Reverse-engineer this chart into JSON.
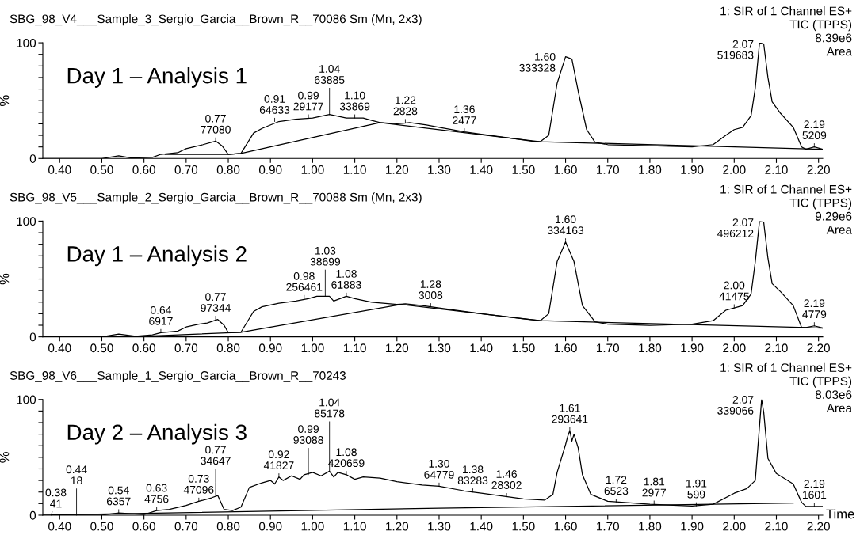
{
  "chart_data": [
    {
      "type": "line",
      "title": "SBG_98_V4___Sample_3_Sergio_Garcia__Brown_R__70086 Sm (Mn, 2x3)",
      "subtitle": "1: SIR of 1 Channel ES+\nTIC (TPPS)\n8.39e6\nArea",
      "ylabel": "%",
      "xlim": [
        0.36,
        2.21
      ],
      "ylim": [
        0,
        100
      ],
      "xticks": [
        {
          "value": 0.4,
          "label": "0.40"
        },
        {
          "value": 0.5,
          "label": "0.50"
        },
        {
          "value": 0.6,
          "label": "0.60"
        },
        {
          "value": 0.7,
          "label": "0.70"
        },
        {
          "value": 0.8,
          "label": "0.80"
        },
        {
          "value": 0.9,
          "label": "0.90"
        },
        {
          "value": 1.0,
          "label": "1.00"
        },
        {
          "value": 1.1,
          "label": "1.10"
        },
        {
          "value": 1.2,
          "label": "1.20"
        },
        {
          "value": 1.3,
          "label": "1.30"
        },
        {
          "value": 1.4,
          "label": "1.40"
        },
        {
          "value": 1.5,
          "label": "1.50"
        },
        {
          "value": 1.6,
          "label": "1.60"
        },
        {
          "value": 1.7,
          "label": "1.70"
        },
        {
          "value": 1.8,
          "label": "1.80"
        },
        {
          "value": 1.9,
          "label": "1.90"
        },
        {
          "value": 2.0,
          "label": "2.00"
        },
        {
          "value": 2.1,
          "label": "2.10"
        },
        {
          "value": 2.2,
          "label": "2.20"
        }
      ],
      "yticks": [
        0,
        {
          "value": 10,
          "label": null
        },
        {
          "value": 20,
          "label": null
        },
        {
          "value": 30,
          "label": null
        },
        {
          "value": 40,
          "label": null
        },
        {
          "value": 50,
          "label": null
        },
        {
          "value": 60,
          "label": null
        },
        {
          "value": 70,
          "label": null
        },
        {
          "value": 80,
          "label": null
        },
        {
          "value": 90,
          "label": null
        },
        100
      ],
      "series": [
        {
          "color": "#000000",
          "x": [
            0.36,
            0.5,
            0.54,
            0.57,
            0.62,
            0.64,
            0.68,
            0.7,
            0.74,
            0.77,
            0.785,
            0.8,
            0.83,
            0.86,
            0.88,
            0.92,
            0.96,
            1.0,
            1.04,
            1.08,
            1.12,
            1.14,
            1.16,
            1.2,
            1.23,
            1.27,
            1.3,
            1.36,
            1.4,
            1.46,
            1.52,
            1.54,
            1.56,
            1.58,
            1.6,
            1.615,
            1.63,
            1.65,
            1.67,
            1.7,
            1.8,
            1.9,
            1.95,
            1.98,
            2.0,
            2.02,
            2.04,
            2.05,
            2.06,
            2.07,
            2.08,
            2.09,
            2.11,
            2.14,
            2.16,
            2.17,
            2.19,
            2.21
          ],
          "values": [
            0,
            0,
            2.4,
            0.5,
            1,
            3.6,
            5,
            8.5,
            12,
            15,
            11,
            3.6,
            4.4,
            22,
            26,
            32,
            34,
            35,
            38,
            35,
            35,
            33,
            31,
            30,
            31,
            29,
            27,
            23,
            21,
            18,
            15,
            14.5,
            20,
            65,
            88,
            86,
            58,
            25,
            14,
            12,
            11,
            10,
            12,
            20,
            25,
            27,
            37,
            61,
            100,
            99,
            70,
            49,
            39,
            27,
            10,
            8,
            10,
            8
          ]
        },
        {
          "color": "#000000",
          "x": [
            0.65,
            0.8,
            0.83,
            1.16,
            1.54,
            2.21
          ],
          "values": [
            3.6,
            3.6,
            4.4,
            31,
            14.5,
            8
          ]
        }
      ],
      "annotations": [
        "Day 1 – Analysis 1",
        {
          "text": "0.77\n77080",
          "x": 0.77,
          "y": 15
        },
        {
          "text": "0.91\n64633",
          "x": 0.91,
          "y": 32
        },
        {
          "text": "0.99\n29177",
          "x": 0.99,
          "y": 35
        },
        {
          "text": "1.04\n63885",
          "x": 1.04,
          "y": 38
        },
        {
          "text": "1.10\n33869",
          "x": 1.1,
          "y": 35
        },
        {
          "text": "1.22\n2828",
          "x": 1.22,
          "y": 31
        },
        {
          "text": "1.36\n2477",
          "x": 1.36,
          "y": 23
        },
        {
          "text": "1.60\n333328",
          "x": 1.6,
          "y": 88
        },
        {
          "text": "2.07\n519683",
          "x": 2.07,
          "y": 99
        },
        {
          "text": "2.19\n5209",
          "x": 2.19,
          "y": 10
        }
      ]
    },
    {
      "type": "line",
      "title": "SBG_98_V5___Sample_2_Sergio_Garcia__Brown_R__70088 Sm (Mn, 2x3)",
      "subtitle": "1: SIR of 1 Channel ES+\nTIC (TPPS)\n9.29e6\nArea",
      "ylabel": "%",
      "xlim": [
        0.36,
        2.21
      ],
      "ylim": [
        0,
        100
      ],
      "xticks": [
        {
          "value": 0.4,
          "label": "0.40"
        },
        {
          "value": 0.5,
          "label": "0.50"
        },
        {
          "value": 0.6,
          "label": "0.60"
        },
        {
          "value": 0.7,
          "label": "0.70"
        },
        {
          "value": 0.8,
          "label": "0.80"
        },
        {
          "value": 0.9,
          "label": "0.90"
        },
        {
          "value": 1.0,
          "label": "1.00"
        },
        {
          "value": 1.1,
          "label": "1.10"
        },
        {
          "value": 1.2,
          "label": "1.20"
        },
        {
          "value": 1.3,
          "label": "1.30"
        },
        {
          "value": 1.4,
          "label": "1.40"
        },
        {
          "value": 1.5,
          "label": "1.50"
        },
        {
          "value": 1.6,
          "label": "1.60"
        },
        {
          "value": 1.7,
          "label": "1.70"
        },
        {
          "value": 1.8,
          "label": "1.80"
        },
        {
          "value": 1.9,
          "label": "1.90"
        },
        {
          "value": 2.0,
          "label": "2.00"
        },
        {
          "value": 2.1,
          "label": "2.10"
        },
        {
          "value": 2.2,
          "label": "2.20"
        }
      ],
      "yticks": [
        0,
        {
          "value": 10,
          "label": null
        },
        {
          "value": 20,
          "label": null
        },
        {
          "value": 30,
          "label": null
        },
        {
          "value": 40,
          "label": null
        },
        {
          "value": 50,
          "label": null
        },
        {
          "value": 60,
          "label": null
        },
        {
          "value": 70,
          "label": null
        },
        {
          "value": 80,
          "label": null
        },
        {
          "value": 90,
          "label": null
        },
        100
      ],
      "series": [
        {
          "color": "#000000",
          "x": [
            0.36,
            0.5,
            0.54,
            0.58,
            0.62,
            0.64,
            0.68,
            0.7,
            0.73,
            0.75,
            0.775,
            0.79,
            0.8,
            0.83,
            0.86,
            0.88,
            0.92,
            0.96,
            0.99,
            1.01,
            1.04,
            1.05,
            1.08,
            1.1,
            1.14,
            1.2,
            1.22,
            1.26,
            1.28,
            1.3,
            1.4,
            1.5,
            1.54,
            1.56,
            1.58,
            1.6,
            1.62,
            1.64,
            1.67,
            1.7,
            1.8,
            1.9,
            1.95,
            1.98,
            2.0,
            2.02,
            2.04,
            2.05,
            2.06,
            2.07,
            2.08,
            2.09,
            2.11,
            2.14,
            2.16,
            2.17,
            2.19,
            2.21
          ],
          "values": [
            0,
            0,
            2.4,
            0.5,
            1.7,
            3.6,
            5,
            8.5,
            11,
            12,
            15,
            10,
            3.6,
            4,
            22,
            26,
            29,
            31,
            33,
            35,
            35,
            31,
            35,
            33,
            30,
            28,
            28.5,
            27,
            26,
            25,
            20,
            15.5,
            14,
            20,
            65,
            82,
            65,
            27,
            13,
            11,
            10,
            11,
            14,
            23,
            25,
            27,
            37,
            65,
            100,
            99,
            68,
            46,
            39,
            27,
            8,
            8,
            9.5,
            7.6
          ]
        },
        {
          "color": "#000000",
          "x": [
            0.6,
            0.83,
            1.21,
            1.54,
            2.21
          ],
          "values": [
            0.5,
            4,
            28,
            14,
            7.6
          ]
        }
      ],
      "annotations": [
        "Day 1 – Analysis 2",
        {
          "text": "0.64\n6917",
          "x": 0.64,
          "y": 3.6
        },
        {
          "text": "0.77\n97344",
          "x": 0.77,
          "y": 15
        },
        {
          "text": "0.98\n256461",
          "x": 0.98,
          "y": 33
        },
        {
          "text": "1.03\n38699",
          "x": 1.03,
          "y": 35
        },
        {
          "text": "1.08\n61883",
          "x": 1.08,
          "y": 35
        },
        {
          "text": "1.28\n3008",
          "x": 1.28,
          "y": 26
        },
        {
          "text": "1.60\n334163",
          "x": 1.6,
          "y": 82
        },
        {
          "text": "2.00\n41475",
          "x": 2.0,
          "y": 25
        },
        {
          "text": "2.07\n496212",
          "x": 2.07,
          "y": 99
        },
        {
          "text": "2.19\n4779",
          "x": 2.19,
          "y": 9.5
        }
      ]
    },
    {
      "type": "line",
      "title": "SBG_98_V6___Sample_1_Sergio_Garcia__Brown_R__70243",
      "subtitle": "1: SIR of 1 Channel ES+\nTIC (TPPS)\n8.03e6\nArea",
      "ylabel": "%",
      "xlabel": "Time",
      "xlim": [
        0.36,
        2.21
      ],
      "ylim": [
        0,
        100
      ],
      "xticks": [
        {
          "value": 0.4,
          "label": "0.40"
        },
        {
          "value": 0.5,
          "label": "0.50"
        },
        {
          "value": 0.6,
          "label": "0.60"
        },
        {
          "value": 0.7,
          "label": "0.70"
        },
        {
          "value": 0.8,
          "label": "0.80"
        },
        {
          "value": 0.9,
          "label": "0.90"
        },
        {
          "value": 1.0,
          "label": "1.00"
        },
        {
          "value": 1.1,
          "label": "1.10"
        },
        {
          "value": 1.2,
          "label": "1.20"
        },
        {
          "value": 1.3,
          "label": "1.30"
        },
        {
          "value": 1.4,
          "label": "1.40"
        },
        {
          "value": 1.5,
          "label": "1.50"
        },
        {
          "value": 1.6,
          "label": "1.60"
        },
        {
          "value": 1.7,
          "label": "1.70"
        },
        {
          "value": 1.8,
          "label": "1.80"
        },
        {
          "value": 1.9,
          "label": "1.90"
        },
        {
          "value": 2.0,
          "label": "2.00"
        },
        {
          "value": 2.1,
          "label": "2.10"
        },
        {
          "value": 2.2,
          "label": "2.20"
        }
      ],
      "yticks": [
        0,
        {
          "value": 10,
          "label": null
        },
        {
          "value": 20,
          "label": null
        },
        {
          "value": 30,
          "label": null
        },
        {
          "value": 40,
          "label": null
        },
        {
          "value": 50,
          "label": null
        },
        {
          "value": 60,
          "label": null
        },
        {
          "value": 70,
          "label": null
        },
        {
          "value": 80,
          "label": null
        },
        {
          "value": 90,
          "label": null
        },
        100
      ],
      "series": [
        {
          "color": "#000000",
          "x": [
            0.36,
            0.5,
            0.54,
            0.6,
            0.63,
            0.66,
            0.7,
            0.73,
            0.76,
            0.775,
            0.79,
            0.81,
            0.83,
            0.85,
            0.88,
            0.9,
            0.91,
            0.92,
            0.93,
            0.95,
            0.97,
            0.98,
            1.0,
            1.02,
            1.04,
            1.05,
            1.06,
            1.08,
            1.1,
            1.12,
            1.16,
            1.2,
            1.26,
            1.3,
            1.36,
            1.4,
            1.5,
            1.55,
            1.57,
            1.58,
            1.6,
            1.605,
            1.61,
            1.615,
            1.62,
            1.63,
            1.64,
            1.66,
            1.7,
            1.8,
            1.9,
            1.95,
            2.0,
            2.03,
            2.05,
            2.06,
            2.065,
            2.07,
            2.08,
            2.1,
            2.14,
            2.16,
            2.17,
            2.21
          ],
          "values": [
            0,
            0,
            2,
            0.5,
            4,
            5,
            8.5,
            12,
            15,
            17,
            5,
            4,
            7,
            24,
            28,
            30,
            27,
            33,
            30,
            34,
            31,
            35,
            37,
            34,
            38,
            33,
            37,
            35,
            31,
            33,
            32,
            29,
            26,
            25,
            21,
            19,
            14,
            13,
            18,
            37,
            61,
            68,
            73,
            64,
            70,
            58,
            35,
            18,
            12,
            9.5,
            8,
            9.5,
            19,
            23,
            30,
            77,
            100,
            89,
            49,
            36,
            27,
            11,
            7.6,
            7.6
          ]
        },
        {
          "color": "#000000",
          "x": [
            0.38,
            1.3,
            2.14
          ],
          "values": [
            0.2,
            6,
            10.5
          ]
        }
      ],
      "annotations": [
        "Day 2 – Analysis 3",
        {
          "text": "0.38\n41",
          "x": 0.38,
          "y": 0
        },
        {
          "text": "0.44\n18",
          "x": 0.44,
          "y": 0
        },
        {
          "text": "0.54\n6357",
          "x": 0.54,
          "y": 2
        },
        {
          "text": "0.63\n4756",
          "x": 0.63,
          "y": 4
        },
        {
          "text": "0.73\n47096",
          "x": 0.73,
          "y": 12
        },
        {
          "text": "0.77\n34647",
          "x": 0.77,
          "y": 17
        },
        {
          "text": "0.92\n41827",
          "x": 0.92,
          "y": 33
        },
        {
          "text": "0.99\n93088",
          "x": 0.99,
          "y": 35
        },
        {
          "text": "1.04\n85178",
          "x": 1.04,
          "y": 38
        },
        {
          "text": "1.08\n420659",
          "x": 1.08,
          "y": 35
        },
        {
          "text": "1.30\n64779",
          "x": 1.3,
          "y": 25
        },
        {
          "text": "1.38\n83283",
          "x": 1.38,
          "y": 20
        },
        {
          "text": "1.46\n28302",
          "x": 1.46,
          "y": 16
        },
        {
          "text": "1.61\n293641",
          "x": 1.61,
          "y": 73
        },
        {
          "text": "1.72\n6523",
          "x": 1.72,
          "y": 11
        },
        {
          "text": "1.81\n2977",
          "x": 1.81,
          "y": 9.5
        },
        {
          "text": "1.91\n599",
          "x": 1.91,
          "y": 8
        },
        {
          "text": "2.07\n339066",
          "x": 2.07,
          "y": 100
        },
        {
          "text": "2.19\n1601",
          "x": 2.19,
          "y": 7.6
        }
      ]
    }
  ]
}
